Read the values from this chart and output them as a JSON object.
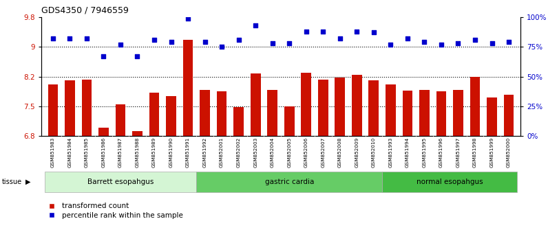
{
  "title": "GDS4350 / 7946559",
  "samples": [
    "GSM851983",
    "GSM851984",
    "GSM851985",
    "GSM851986",
    "GSM851987",
    "GSM851988",
    "GSM851989",
    "GSM851990",
    "GSM851991",
    "GSM851992",
    "GSM852001",
    "GSM852002",
    "GSM852003",
    "GSM852004",
    "GSM852005",
    "GSM852006",
    "GSM852007",
    "GSM852008",
    "GSM852009",
    "GSM852010",
    "GSM851993",
    "GSM851994",
    "GSM851995",
    "GSM851996",
    "GSM851997",
    "GSM851998",
    "GSM851999",
    "GSM852000"
  ],
  "bar_values": [
    8.05,
    8.15,
    8.18,
    6.97,
    7.55,
    6.88,
    7.84,
    7.75,
    9.18,
    7.92,
    7.88,
    7.48,
    8.33,
    7.92,
    7.5,
    8.35,
    8.18,
    8.22,
    8.3,
    8.15,
    8.05,
    7.9,
    7.92,
    7.87,
    7.92,
    8.25,
    7.72,
    7.8
  ],
  "dot_values": [
    82,
    82,
    82,
    67,
    77,
    67,
    81,
    79,
    99,
    79,
    75,
    81,
    93,
    78,
    78,
    88,
    88,
    82,
    88,
    87,
    77,
    82,
    79,
    77,
    78,
    81,
    78,
    79
  ],
  "groups": [
    {
      "label": "Barrett esopahgus",
      "start": 0,
      "end": 9,
      "color": "#d4f5d4"
    },
    {
      "label": "gastric cardia",
      "start": 9,
      "end": 20,
      "color": "#66cc66"
    },
    {
      "label": "normal esopahgus",
      "start": 20,
      "end": 28,
      "color": "#44bb44"
    }
  ],
  "bar_color": "#cc1100",
  "dot_color": "#0000cc",
  "ylim_left": [
    6.75,
    9.75
  ],
  "ylim_right": [
    0,
    100
  ],
  "yticks_left": [
    6.75,
    7.5,
    8.25,
    9.0,
    9.75
  ],
  "yticks_right": [
    0,
    25,
    50,
    75,
    100
  ],
  "hlines": [
    9.0,
    8.25,
    7.5
  ],
  "background_color": "#ffffff",
  "plot_bg": "#ffffff",
  "xticklabel_bg": "#d8d8d8"
}
